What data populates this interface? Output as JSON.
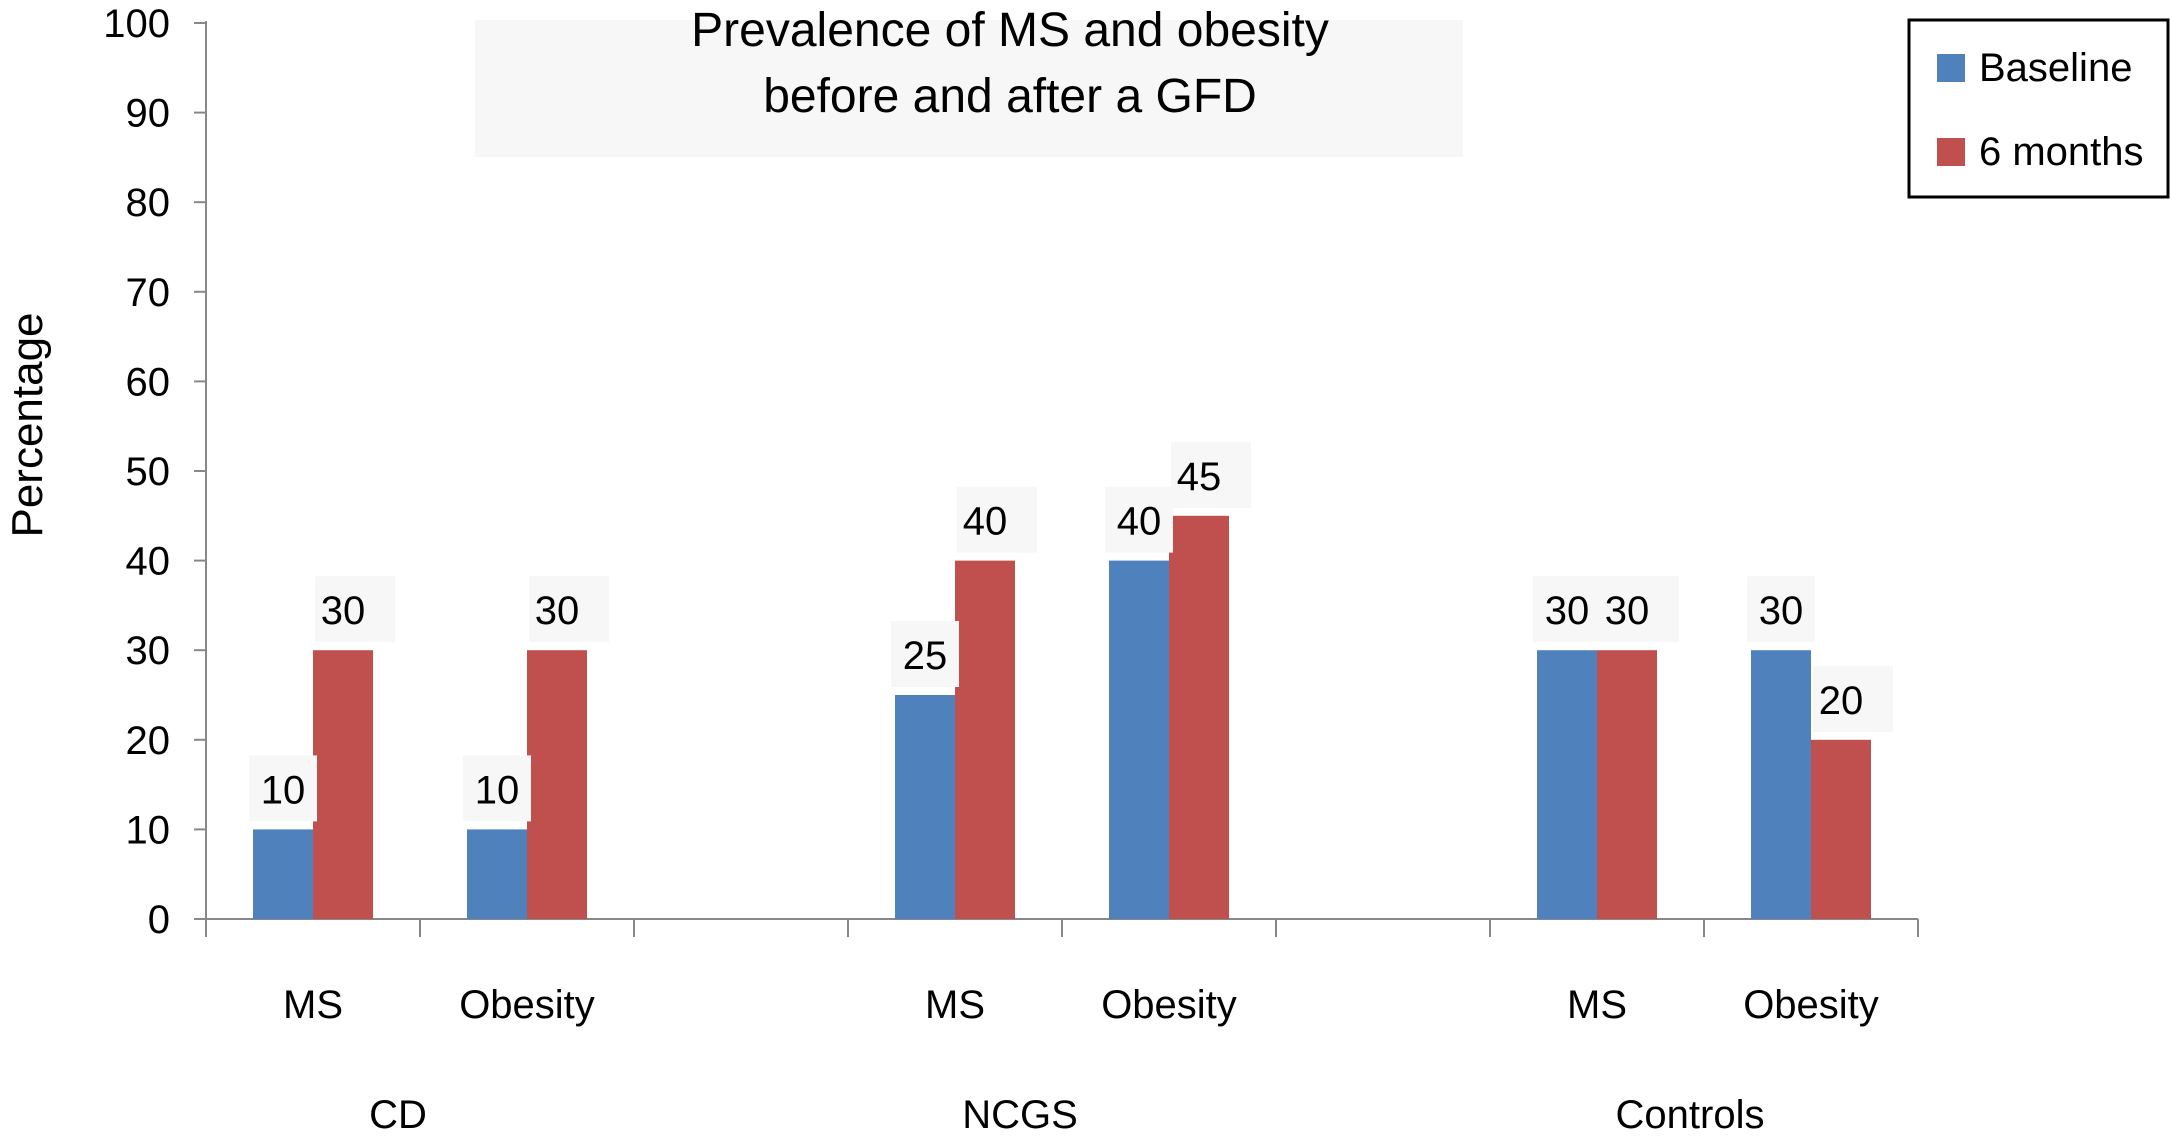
{
  "chart_data": {
    "type": "bar",
    "title": [
      "Prevalence of MS and obesity",
      "before and after a GFD"
    ],
    "ylabel": "Percentage",
    "xlabel": "",
    "ylim": [
      0,
      100
    ],
    "yticks": [
      "0",
      "10",
      "20",
      "30",
      "40",
      "50",
      "60",
      "70",
      "80",
      "90",
      "100"
    ],
    "groups": [
      "CD",
      "NCGS",
      "Controls"
    ],
    "categories": [
      "MS",
      "Obesity",
      "MS",
      "Obesity",
      "MS",
      "Obesity"
    ],
    "series": [
      {
        "name": "Baseline",
        "values": [
          10,
          10,
          25,
          40,
          30,
          30
        ],
        "color": "#4F81BD"
      },
      {
        "name": "6 months",
        "values": [
          30,
          30,
          40,
          45,
          30,
          20
        ],
        "color": "#C0504D"
      }
    ],
    "data_labels": [
      {
        "category": 0,
        "labels": [
          "10",
          "30"
        ]
      },
      {
        "category": 1,
        "labels": [
          "10",
          "30"
        ]
      },
      {
        "category": 2,
        "labels": [
          "25",
          "40"
        ]
      },
      {
        "category": 3,
        "labels": [
          "40",
          "45"
        ]
      },
      {
        "category": 4,
        "labels": [
          "30",
          "30"
        ]
      },
      {
        "category": 5,
        "labels": [
          "30",
          "20"
        ]
      }
    ],
    "legend": {
      "position": "top-right",
      "entries": [
        "Baseline",
        "6 months"
      ]
    },
    "grid": false
  }
}
